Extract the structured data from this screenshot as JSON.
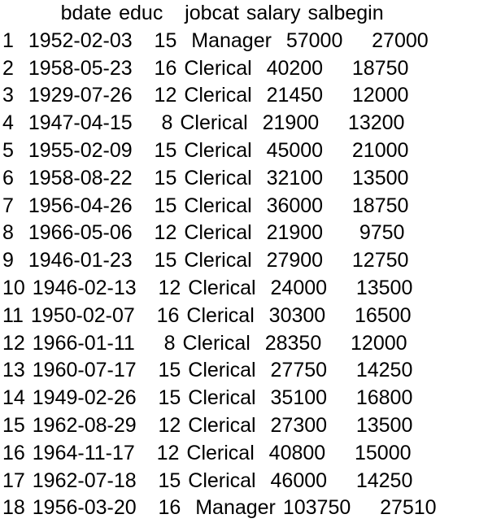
{
  "console": {
    "app": "r-console-dataframe-output"
  },
  "table": {
    "columns": [
      "bdate",
      "educ",
      "jobcat",
      "salary",
      "salbegin"
    ],
    "rows": [
      {
        "index": "1",
        "bdate": "1952-02-03",
        "educ": "15",
        "jobcat": "Manager",
        "salary": "57000",
        "salbegin": "27000"
      },
      {
        "index": "2",
        "bdate": "1958-05-23",
        "educ": "16",
        "jobcat": "Clerical",
        "salary": "40200",
        "salbegin": "18750"
      },
      {
        "index": "3",
        "bdate": "1929-07-26",
        "educ": "12",
        "jobcat": "Clerical",
        "salary": "21450",
        "salbegin": "12000"
      },
      {
        "index": "4",
        "bdate": "1947-04-15",
        "educ": "8",
        "jobcat": "Clerical",
        "salary": "21900",
        "salbegin": "13200"
      },
      {
        "index": "5",
        "bdate": "1955-02-09",
        "educ": "15",
        "jobcat": "Clerical",
        "salary": "45000",
        "salbegin": "21000"
      },
      {
        "index": "6",
        "bdate": "1958-08-22",
        "educ": "15",
        "jobcat": "Clerical",
        "salary": "32100",
        "salbegin": "13500"
      },
      {
        "index": "7",
        "bdate": "1956-04-26",
        "educ": "15",
        "jobcat": "Clerical",
        "salary": "36000",
        "salbegin": "18750"
      },
      {
        "index": "8",
        "bdate": "1966-05-06",
        "educ": "12",
        "jobcat": "Clerical",
        "salary": "21900",
        "salbegin": "9750"
      },
      {
        "index": "9",
        "bdate": "1946-01-23",
        "educ": "15",
        "jobcat": "Clerical",
        "salary": "27900",
        "salbegin": "12750"
      },
      {
        "index": "10",
        "bdate": "1946-02-13",
        "educ": "12",
        "jobcat": "Clerical",
        "salary": "24000",
        "salbegin": "13500"
      },
      {
        "index": "11",
        "bdate": "1950-02-07",
        "educ": "16",
        "jobcat": "Clerical",
        "salary": "30300",
        "salbegin": "16500"
      },
      {
        "index": "12",
        "bdate": "1966-01-11",
        "educ": "8",
        "jobcat": "Clerical",
        "salary": "28350",
        "salbegin": "12000"
      },
      {
        "index": "13",
        "bdate": "1960-07-17",
        "educ": "15",
        "jobcat": "Clerical",
        "salary": "27750",
        "salbegin": "14250"
      },
      {
        "index": "14",
        "bdate": "1949-02-26",
        "educ": "15",
        "jobcat": "Clerical",
        "salary": "35100",
        "salbegin": "16800"
      },
      {
        "index": "15",
        "bdate": "1962-08-29",
        "educ": "12",
        "jobcat": "Clerical",
        "salary": "27300",
        "salbegin": "13500"
      },
      {
        "index": "16",
        "bdate": "1964-11-17",
        "educ": "12",
        "jobcat": "Clerical",
        "salary": "40800",
        "salbegin": "15000"
      },
      {
        "index": "17",
        "bdate": "1962-07-18",
        "educ": "15",
        "jobcat": "Clerical",
        "salary": "46000",
        "salbegin": "14250"
      },
      {
        "index": "18",
        "bdate": "1956-03-20",
        "educ": "16",
        "jobcat": "Manager",
        "salary": "103750",
        "salbegin": "27510"
      }
    ]
  },
  "colors": {
    "text": "#000000",
    "background": "#ffffff"
  }
}
